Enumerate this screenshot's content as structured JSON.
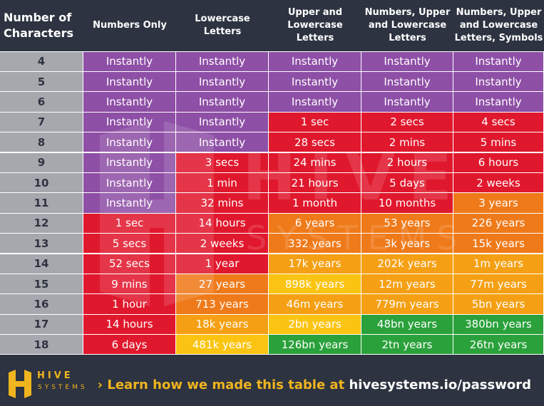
{
  "headers": [
    "Number of\nCharacters",
    "Numbers Only",
    "Lowercase\nLetters",
    "Upper and\nLowercase\nLetters",
    "Numbers, Upper\nand Lowercase\nLetters",
    "Numbers, Upper\nand Lowercase\nLetters, Symbols"
  ],
  "colors": {
    "background": "#2d3340",
    "number_column": "#a7a8ae",
    "purple": "#8e4fa6",
    "red": "#e0182d",
    "orange": "#ef7a1a",
    "amber": "#f5a014",
    "yellow": "#fbc412",
    "green": "#2aa13b",
    "accent": "#f0b41e"
  },
  "chart_data": {
    "type": "table",
    "row_labels": [
      "4",
      "5",
      "6",
      "7",
      "8",
      "9",
      "10",
      "11",
      "12",
      "13",
      "14",
      "15",
      "16",
      "17",
      "18"
    ],
    "rows": [
      [
        "Instantly",
        "Instantly",
        "Instantly",
        "Instantly",
        "Instantly"
      ],
      [
        "Instantly",
        "Instantly",
        "Instantly",
        "Instantly",
        "Instantly"
      ],
      [
        "Instantly",
        "Instantly",
        "Instantly",
        "Instantly",
        "Instantly"
      ],
      [
        "Instantly",
        "Instantly",
        "1 sec",
        "2 secs",
        "4 secs"
      ],
      [
        "Instantly",
        "Instantly",
        "28 secs",
        "2 mins",
        "5 mins"
      ],
      [
        "Instantly",
        "3 secs",
        "24 mins",
        "2 hours",
        "6 hours"
      ],
      [
        "Instantly",
        "1 min",
        "21 hours",
        "5 days",
        "2 weeks"
      ],
      [
        "Instantly",
        "32 mins",
        "1 month",
        "10 months",
        "3 years"
      ],
      [
        "1 sec",
        "14 hours",
        "6 years",
        "53 years",
        "226 years"
      ],
      [
        "5 secs",
        "2 weeks",
        "332 years",
        "3k years",
        "15k years"
      ],
      [
        "52 secs",
        "1 year",
        "17k years",
        "202k years",
        "1m years"
      ],
      [
        "9 mins",
        "27 years",
        "898k years",
        "12m years",
        "77m years"
      ],
      [
        "1 hour",
        "713 years",
        "46m years",
        "779m years",
        "5bn years"
      ],
      [
        "14 hours",
        "18k years",
        "2bn years",
        "48bn years",
        "380bn years"
      ],
      [
        "6 days",
        "481k years",
        "126bn years",
        "2tn years",
        "26tn years"
      ]
    ],
    "cell_colors": [
      [
        "purple",
        "purple",
        "purple",
        "purple",
        "purple"
      ],
      [
        "purple",
        "purple",
        "purple",
        "purple",
        "purple"
      ],
      [
        "purple",
        "purple",
        "purple",
        "purple",
        "purple"
      ],
      [
        "purple",
        "purple",
        "red",
        "red",
        "red"
      ],
      [
        "purple",
        "purple",
        "red",
        "red",
        "red"
      ],
      [
        "purple",
        "red",
        "red",
        "red",
        "red"
      ],
      [
        "purple",
        "red",
        "red",
        "red",
        "red"
      ],
      [
        "purple",
        "red",
        "red",
        "red",
        "orange"
      ],
      [
        "red",
        "red",
        "orange",
        "orange",
        "orange"
      ],
      [
        "red",
        "red",
        "orange",
        "orange",
        "orange"
      ],
      [
        "red",
        "red",
        "amber",
        "amber",
        "amber"
      ],
      [
        "red",
        "orange",
        "yellow",
        "amber",
        "amber"
      ],
      [
        "red",
        "orange",
        "amber",
        "amber",
        "amber"
      ],
      [
        "red",
        "amber",
        "yellow",
        "green",
        "green"
      ],
      [
        "red",
        "yellow",
        "green",
        "green",
        "green"
      ]
    ]
  },
  "footer": {
    "logo_word": "HIVE",
    "logo_sub": "SYSTEMS",
    "link_prefix": "› Learn how we made this table at ",
    "link_url": "hivesystems.io/password"
  }
}
